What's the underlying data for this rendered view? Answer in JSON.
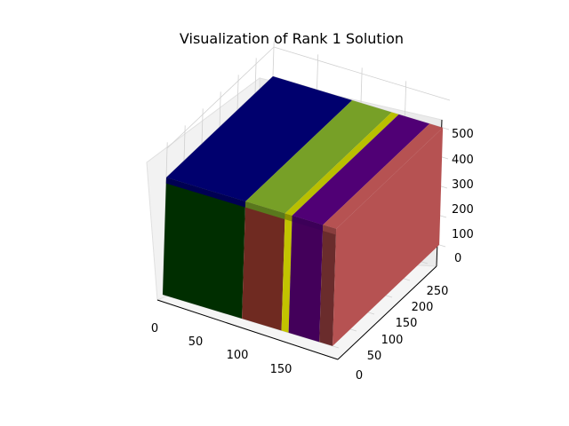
{
  "chart_data": {
    "type": "3d-bar",
    "title": "Visualization of Rank 1 Solution",
    "axes": {
      "x": {
        "ticks": [
          "0",
          "50",
          "100",
          "150"
        ]
      },
      "y": {
        "ticks": [
          "0",
          "50",
          "100",
          "150",
          "200",
          "250"
        ]
      },
      "z": {
        "ticks": [
          "0",
          "100",
          "200",
          "300",
          "400",
          "500"
        ]
      }
    },
    "grid": true,
    "blocks": [
      {
        "name": "",
        "color": "#00006e",
        "front_color": "#002e00",
        "x": [
          0,
          90
        ],
        "y": [
          0,
          300
        ],
        "z": [
          0,
          400
        ]
      },
      {
        "name": "",
        "color": "#77a027",
        "front_color": "#6f2a21",
        "x": [
          90,
          135
        ],
        "y": [
          0,
          300
        ],
        "z": [
          0,
          400
        ]
      },
      {
        "name": "",
        "color": "#b9bf00",
        "front_color": "#c2c300",
        "x": [
          135,
          143
        ],
        "y": [
          0,
          300
        ],
        "z": [
          0,
          400
        ]
      },
      {
        "name": "",
        "color": "#500075",
        "front_color": "#43005a",
        "x": [
          143,
          178
        ],
        "y": [
          0,
          300
        ],
        "z": [
          0,
          400
        ]
      },
      {
        "name": "",
        "color": "#b65252",
        "front_color": "#6a2c2c",
        "x": [
          178,
          193
        ],
        "y": [
          0,
          300
        ],
        "z": [
          0,
          400
        ]
      }
    ]
  }
}
